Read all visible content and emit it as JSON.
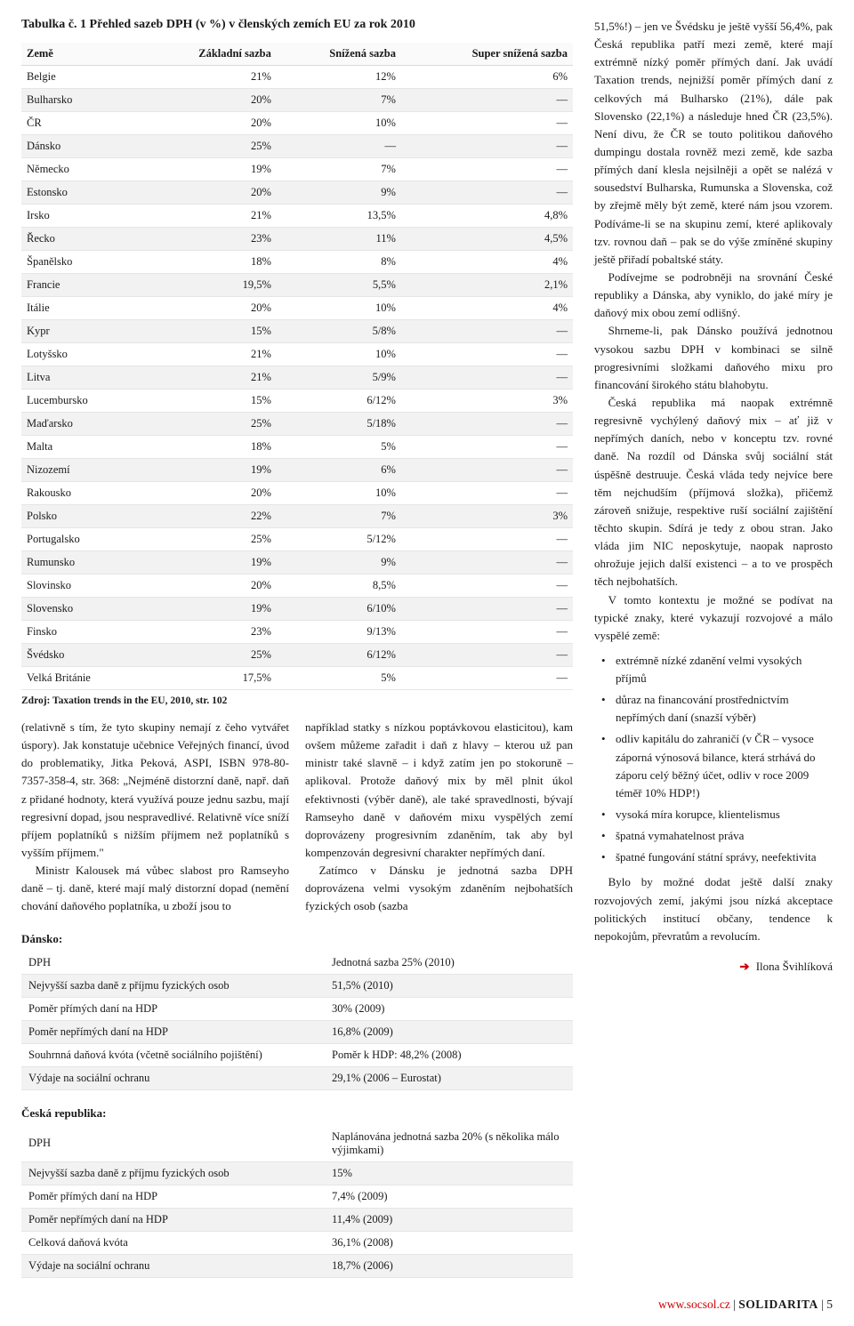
{
  "table1": {
    "title": "Tabulka č. 1 Přehled sazeb DPH (v %) v členských zemích EU za rok 2010",
    "headers": [
      "Země",
      "Základní sazba",
      "Snížená sazba",
      "Super snížená sazba"
    ],
    "rows": [
      [
        "Belgie",
        "21%",
        "12%",
        "6%"
      ],
      [
        "Bulharsko",
        "20%",
        "7%",
        "—"
      ],
      [
        "ČR",
        "20%",
        "10%",
        "—"
      ],
      [
        "Dánsko",
        "25%",
        "—",
        "—"
      ],
      [
        "Německo",
        "19%",
        "7%",
        "—"
      ],
      [
        "Estonsko",
        "20%",
        "9%",
        "—"
      ],
      [
        "Irsko",
        "21%",
        "13,5%",
        "4,8%"
      ],
      [
        "Řecko",
        "23%",
        "11%",
        "4,5%"
      ],
      [
        "Španělsko",
        "18%",
        "8%",
        "4%"
      ],
      [
        "Francie",
        "19,5%",
        "5,5%",
        "2,1%"
      ],
      [
        "Itálie",
        "20%",
        "10%",
        "4%"
      ],
      [
        "Kypr",
        "15%",
        "5/8%",
        "—"
      ],
      [
        "Lotyšsko",
        "21%",
        "10%",
        "—"
      ],
      [
        "Litva",
        "21%",
        "5/9%",
        "—"
      ],
      [
        "Lucembursko",
        "15%",
        "6/12%",
        "3%"
      ],
      [
        "Maďarsko",
        "25%",
        "5/18%",
        "—"
      ],
      [
        "Malta",
        "18%",
        "5%",
        "—"
      ],
      [
        "Nizozemí",
        "19%",
        "6%",
        "—"
      ],
      [
        "Rakousko",
        "20%",
        "10%",
        "—"
      ],
      [
        "Polsko",
        "22%",
        "7%",
        "3%"
      ],
      [
        "Portugalsko",
        "25%",
        "5/12%",
        "—"
      ],
      [
        "Rumunsko",
        "19%",
        "9%",
        "—"
      ],
      [
        "Slovinsko",
        "20%",
        "8,5%",
        "—"
      ],
      [
        "Slovensko",
        "19%",
        "6/10%",
        "—"
      ],
      [
        "Finsko",
        "23%",
        "9/13%",
        "—"
      ],
      [
        "Švédsko",
        "25%",
        "6/12%",
        "—"
      ],
      [
        "Velká Británie",
        "17,5%",
        "5%",
        "—"
      ]
    ],
    "source": "Zdroj: Taxation trends in the EU, 2010, str. 102"
  },
  "body_left": "(relativně s tím, že tyto skupiny nemají z čeho vytvářet úspory). Jak konstatuje učebnice Veřejných financí, úvod do problematiky, Jitka Peková, ASPI, ISBN 978-80-7357-358-4, str. 368: „Nejméně distorzní daně, např. daň z přidané hodnoty, která využívá pouze jednu sazbu, mají regresivní dopad, jsou nespravedlivé. Relativně více sníží příjem poplatníků s nižším příjmem než poplatníků s vyšším příjmem.\"",
  "body_left_p2": "Ministr Kalousek má vůbec slabost pro Ramseyho daně – tj. daně, které mají malý distorzní dopad (nemění chování daňového poplatníka, u zboží jsou to",
  "body_mid": "například statky s nízkou poptávkovou elasticitou), kam ovšem můžeme zařadit i daň z hlavy – kterou už pan ministr také slavně – i když zatím jen po stokoruně – aplikoval. Protože daňový mix by měl plnit úkol efektivnosti (výběr daně), ale také spravedlnosti, bývají Ramseyho daně v daňovém mixu vyspělých zemí doprovázeny progresivním zdaněním, tak aby byl kompenzován degresivní charakter nepřímých daní.",
  "body_mid_p2": "Zatímco v Dánsku je jednotná sazba DPH doprovázena velmi vysokým zdaněním nejbohatších fyzických osob (sazba",
  "right_paragraphs": [
    "51,5%!) – jen ve Švédsku je ještě vyšší 56,4%, pak Česká republika patří mezi země, které mají extrémně nízký poměr přímých daní. Jak uvádí Taxation trends, nejnižší poměr přímých daní z celkových má Bulharsko (21%), dále pak Slovensko (22,1%) a následuje hned ČR (23,5%). Není divu, že ČR se touto politikou daňového dumpingu dostala rovněž mezi země, kde sazba přímých daní klesla nejsilněji a opět se nalézá v sousedství Bulharska, Rumunska a Slovenska, což by zřejmě měly být země, které nám jsou vzorem. Podíváme-li se na skupinu zemí, které aplikovaly tzv. rovnou daň – pak se do výše zmíněné skupiny ještě přiřadí pobaltské státy.",
    "Podívejme se podrobněji na srovnání České republiky a Dánska, aby vyniklo, do jaké míry je daňový mix obou zemí odlišný.",
    "Shrneme-li, pak Dánsko používá jednotnou vysokou sazbu DPH v kombinaci se silně progresivními složkami daňového mixu pro financování širokého státu blahobytu.",
    "Česká republika má naopak extrémně regresivně vychýlený daňový mix – ať již v nepřímých daních, nebo v konceptu tzv. rovné daně. Na rozdíl od Dánska svůj sociální stát úspěšně destruuje. Česká vláda tedy nejvíce bere těm nejchudším (příjmová složka), přičemž zároveň snižuje, respektive ruší sociální zajištění těchto skupin. Sdírá je tedy z obou stran. Jako vláda jim NIC neposkytuje, naopak naprosto ohrožuje jejich další existenci – a to ve prospěch těch nejbohatších.",
    "V tomto kontextu je možné se podívat na typické znaky, které vykazují rozvojové a málo vyspělé země:"
  ],
  "bullets": [
    "extrémně nízké zdanění velmi vysokých příjmů",
    "důraz na financování prostřednictvím nepřímých daní (snazší výběr)",
    "odliv kapitálu do zahraničí (v ČR – vysoce záporná výnosová bilance, která strhává do záporu celý běžný účet, odliv v roce 2009 téměř 10% HDP!)",
    "vysoká míra korupce, klientelismus",
    "špatná vymahatelnost práva",
    "špatné fungování státní správy, neefektivita"
  ],
  "right_tail": "Bylo by možné dodat ještě další znaky rozvojových zemí, jakými jsou nízká akceptace politických institucí občany, tendence k nepokojům, převratům a revolucím.",
  "byline": "Ilona Švihlíková",
  "dansko": {
    "title": "Dánsko:",
    "rows": [
      [
        "DPH",
        "Jednotná sazba 25% (2010)"
      ],
      [
        "Nejvyšší sazba daně z příjmu fyzických osob",
        "51,5% (2010)"
      ],
      [
        "Poměr přímých daní na HDP",
        "30% (2009)"
      ],
      [
        "Poměr nepřímých daní na HDP",
        "16,8% (2009)"
      ],
      [
        "Souhrnná daňová kvóta (včetně sociálního pojištění)",
        "Poměr k HDP: 48,2% (2008)"
      ],
      [
        "Výdaje na sociální ochranu",
        "29,1% (2006 – Eurostat)"
      ]
    ]
  },
  "cr": {
    "title": "Česká republika:",
    "rows": [
      [
        "DPH",
        "Naplánována jednotná sazba 20% (s několika málo výjimkami)"
      ],
      [
        "Nejvyšší sazba daně z příjmu fyzických osob",
        "15%"
      ],
      [
        "Poměr přímých daní na HDP",
        "7,4% (2009)"
      ],
      [
        "Poměr nepřímých daní na HDP",
        "11,4% (2009)"
      ],
      [
        "Celková daňová kvóta",
        "36,1% (2008)"
      ],
      [
        "Výdaje na sociální ochranu",
        "18,7% (2006)"
      ]
    ]
  },
  "footer": {
    "site": "www.socsol.cz",
    "brand": "SOLIDARITA",
    "page": "5"
  }
}
